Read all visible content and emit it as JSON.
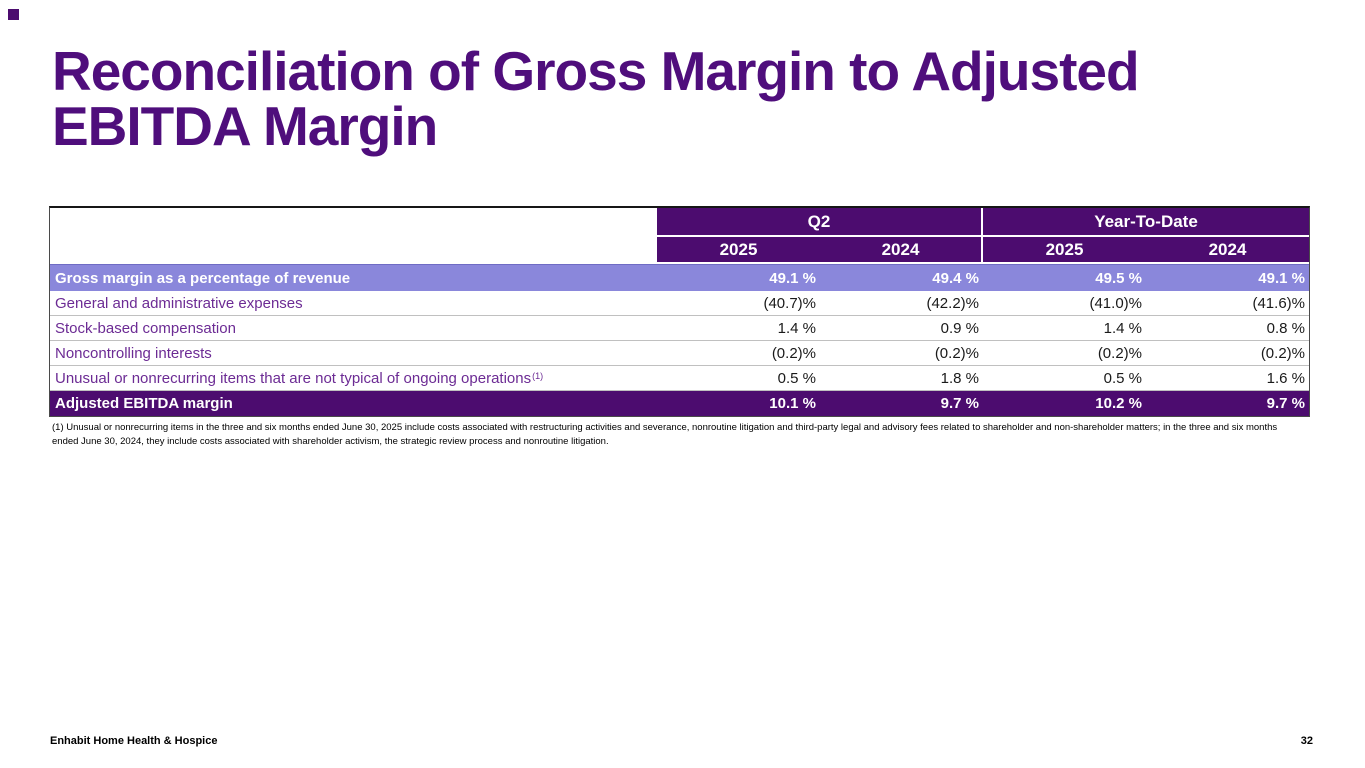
{
  "slide": {
    "title": "Reconciliation of Gross Margin to Adjusted EBITDA Margin",
    "footer": {
      "brand": "Enhabit Home Health & Hospice",
      "page_number": "32"
    }
  },
  "table": {
    "column_groups": [
      {
        "label": "Q2"
      },
      {
        "label": "Year-To-Date"
      }
    ],
    "year_columns": [
      "2025",
      "2024",
      "2025",
      "2024"
    ],
    "rows": [
      {
        "label": "Gross margin as a percentage of revenue",
        "values": [
          "49.1 %",
          "49.4 %",
          "49.5 %",
          "49.1 %"
        ]
      },
      {
        "label": "General and administrative expenses",
        "values": [
          "(40.7)%",
          "(42.2)%",
          "(41.0)%",
          "(41.6)%"
        ]
      },
      {
        "label": "Stock-based compensation",
        "values": [
          "1.4 %",
          "0.9 %",
          "1.4 %",
          "0.8 %"
        ]
      },
      {
        "label": "Noncontrolling interests",
        "values": [
          "(0.2)%",
          "(0.2)%",
          "(0.2)%",
          "(0.2)%"
        ]
      },
      {
        "label": "Unusual or nonrecurring items that are not typical of ongoing operations",
        "label_sup": "(1)",
        "values": [
          "0.5 %",
          "1.8 %",
          "0.5 %",
          "1.6 %"
        ]
      },
      {
        "label": "Adjusted EBITDA margin",
        "values": [
          "10.1 %",
          "9.7 %",
          "10.2 %",
          "9.7 %"
        ]
      }
    ]
  },
  "footnote": "(1) Unusual or nonrecurring items in the three and six months ended June 30, 2025 include costs associated with restructuring activities and severance, nonroutine litigation and third-party legal and advisory fees related to shareholder and non-shareholder matters; in the three and six months ended June 30, 2024, they include costs associated with shareholder activism, the strategic review process and nonroutine litigation.",
  "colors": {
    "dark_purple": "#4C0C6F",
    "light_purple": "#8A87DB",
    "title_purple": "#4F0E7C",
    "label_purple": "#6C2B94",
    "value_text": "#1A1A1A",
    "rule_gray": "#C0C0C0"
  }
}
